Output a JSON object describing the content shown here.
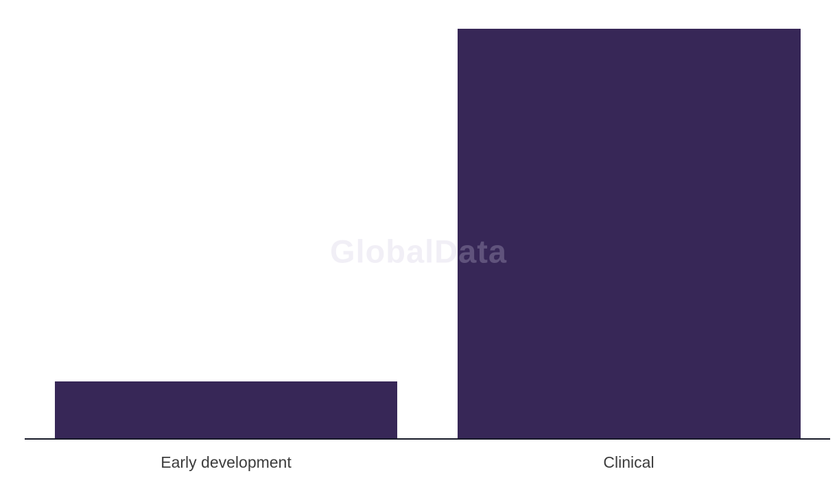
{
  "page": {
    "background_color": "#ffffff"
  },
  "watermark": {
    "text": "GlobalData"
  },
  "chart_data": {
    "type": "bar",
    "categories": [
      "Early development",
      "Clinical"
    ],
    "values": [
      84,
      599
    ],
    "values_note": "No y-axis ticks or data labels are visible; values are relative bar heights estimated in pixels (Clinical ≈ 7.1× Early development)",
    "title": "",
    "xlabel": "",
    "ylabel": "",
    "ylim": [
      0,
      599
    ],
    "grid": false,
    "legend": false,
    "bar_color": "#372757",
    "axis_line_color": "#161827",
    "label_color": "#3c3c3c",
    "watermark_text": "GlobalData"
  }
}
